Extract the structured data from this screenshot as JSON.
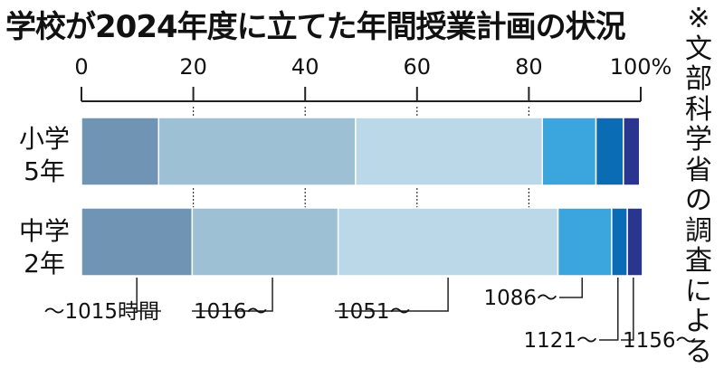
{
  "title": "学校が2024年度に立てた年間授業計画の状況",
  "note": "※文部科学省の調査による",
  "chart_data": {
    "type": "bar",
    "orientation": "horizontal",
    "stacked": true,
    "xlim": [
      0,
      100
    ],
    "tick_labels": [
      "0",
      "20",
      "40",
      "60",
      "80",
      "100%"
    ],
    "rows": [
      {
        "label_line1": "小学",
        "label_line2": "5年",
        "values": [
          13.8,
          35.2,
          33.4,
          9.6,
          4.9,
          2.9
        ]
      },
      {
        "label_line1": "中学",
        "label_line2": "2年",
        "values": [
          19.8,
          26.1,
          39.3,
          9.6,
          2.8,
          2.7
        ]
      }
    ],
    "categories": [
      "～1015時間",
      "1016～",
      "1051～",
      "1086～",
      "1121～",
      "1156～"
    ],
    "colors": [
      "#7095b4",
      "#9dc0d5",
      "#bad8e8",
      "#3ba6de",
      "#0b6cb6",
      "#2a3590"
    ]
  }
}
